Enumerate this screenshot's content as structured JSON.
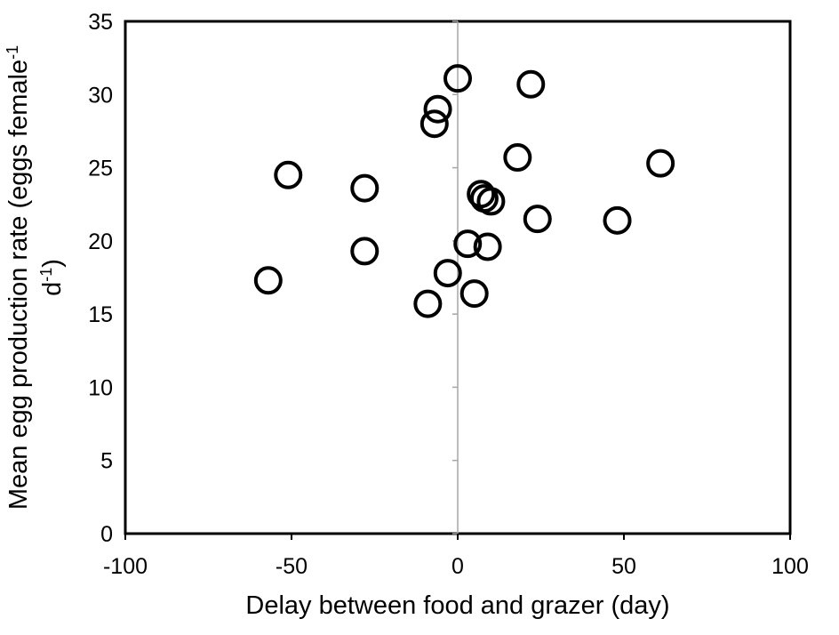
{
  "chart_data": {
    "type": "scatter",
    "title": "",
    "xlabel": "Delay between food and grazer (day)",
    "ylabel_line1": "Mean egg production rate (eggs female",
    "ylabel_line1_sup": "-1",
    "ylabel_line2": "d",
    "ylabel_line2_sup": "-1",
    "ylabel_line2_end": ")",
    "xlim": [
      -100,
      100
    ],
    "ylim": [
      0,
      35
    ],
    "xticks": [
      -100,
      -50,
      0,
      50,
      100
    ],
    "yticks": [
      0,
      5,
      10,
      15,
      20,
      25,
      30,
      35
    ],
    "grid": false,
    "legend": "none",
    "marker_color": "#000000",
    "axis_color": "#000000",
    "zero_line_color": "#a6a6a6",
    "points": [
      {
        "x": -57,
        "y": 17.3
      },
      {
        "x": -51,
        "y": 24.5
      },
      {
        "x": -28,
        "y": 23.6
      },
      {
        "x": -28,
        "y": 19.3
      },
      {
        "x": -9,
        "y": 15.7
      },
      {
        "x": -7,
        "y": 28.0
      },
      {
        "x": -6,
        "y": 29.0
      },
      {
        "x": -3,
        "y": 17.8
      },
      {
        "x": 0,
        "y": 31.1
      },
      {
        "x": 3,
        "y": 19.8
      },
      {
        "x": 5,
        "y": 16.4
      },
      {
        "x": 7,
        "y": 23.2
      },
      {
        "x": 8,
        "y": 22.9
      },
      {
        "x": 9,
        "y": 19.6
      },
      {
        "x": 10,
        "y": 22.7
      },
      {
        "x": 18,
        "y": 25.7
      },
      {
        "x": 22,
        "y": 30.7
      },
      {
        "x": 24,
        "y": 21.5
      },
      {
        "x": 48,
        "y": 21.4
      },
      {
        "x": 61,
        "y": 25.3
      }
    ]
  }
}
